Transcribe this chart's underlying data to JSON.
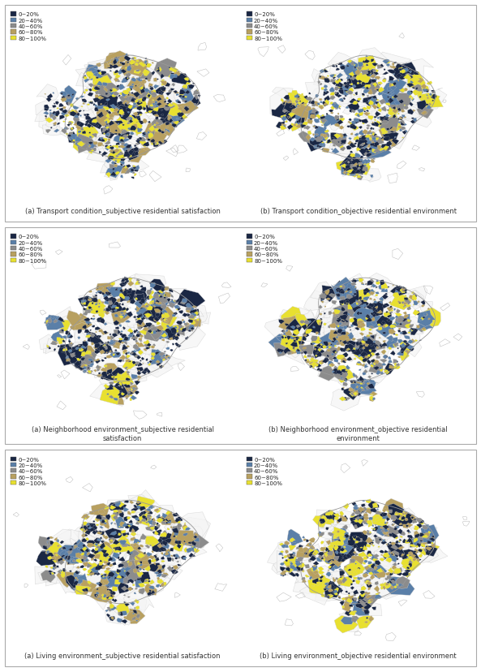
{
  "legend_labels": [
    "0~20%",
    "20~40%",
    "40~60%",
    "60~80%",
    "80~100%"
  ],
  "colors": [
    "#1a2744",
    "#5a7fa8",
    "#8c8c8c",
    "#b8a060",
    "#e8e030"
  ],
  "bg_outline_color": "#d0d0d0",
  "patch_edge_color": "#cccccc",
  "background_color": "#ffffff",
  "panel_border_color": "#aaaaaa",
  "row_titles": [
    [
      "(a) Transport condition_subjective residential satisfaction",
      "(b) Transport condition_objective residential environment"
    ],
    [
      "(a) Neighborhood environment_subjective residential\nsatisfaction",
      "(b) Neighborhood environment_objective residential\nenvironment"
    ],
    [
      "(a) Living environment_subjective residential satisfaction",
      "(b) Living environment_objective residential environment"
    ]
  ],
  "fig_width": 5.93,
  "fig_height": 8.29,
  "title_fontsize": 6.0,
  "legend_fontsize": 5.0,
  "n_small": 600,
  "n_large": 60,
  "n_bg": 80
}
